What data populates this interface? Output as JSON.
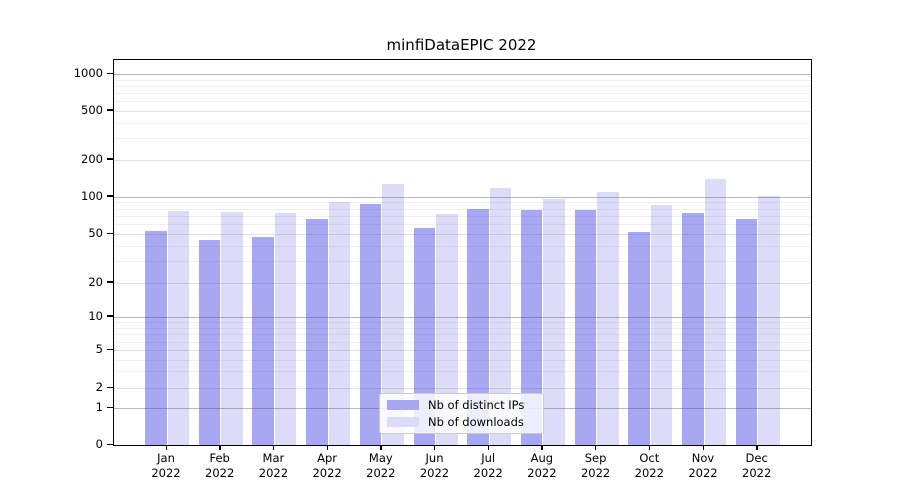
{
  "figure": {
    "title": "minfiDataEPIC 2022"
  },
  "chart_data": {
    "type": "bar",
    "title": "minfiDataEPIC 2022",
    "categories": [
      "Jan 2022",
      "Feb 2022",
      "Mar 2022",
      "Apr 2022",
      "May 2022",
      "Jun 2022",
      "Jul 2022",
      "Aug 2022",
      "Sep 2022",
      "Oct 2022",
      "Nov 2022",
      "Dec 2022"
    ],
    "x_tick_labels": [
      [
        "Jan",
        "2022"
      ],
      [
        "Feb",
        "2022"
      ],
      [
        "Mar",
        "2022"
      ],
      [
        "Apr",
        "2022"
      ],
      [
        "May",
        "2022"
      ],
      [
        "Jun",
        "2022"
      ],
      [
        "Jul",
        "2022"
      ],
      [
        "Aug",
        "2022"
      ],
      [
        "Sep",
        "2022"
      ],
      [
        "Oct",
        "2022"
      ],
      [
        "Nov",
        "2022"
      ],
      [
        "Dec",
        "2022"
      ]
    ],
    "series": [
      {
        "name": "Nb of distinct IPs",
        "color": "#a7a7f4",
        "values": [
          53,
          45,
          47,
          66,
          87,
          56,
          80,
          78,
          78,
          52,
          74,
          66
        ]
      },
      {
        "name": "Nb of downloads",
        "color": "#dcdcf8",
        "values": [
          77,
          75,
          74,
          90,
          128,
          73,
          118,
          96,
          110,
          86,
          140,
          101
        ]
      }
    ],
    "xlabel": "",
    "ylabel": "",
    "yticks": [
      0,
      1,
      2,
      5,
      10,
      20,
      50,
      100,
      200,
      500,
      1000
    ],
    "yscale": "log-like with 0 baseline and 1-2-5 ticks",
    "ylim": [
      0,
      1300
    ],
    "grid": true,
    "legend_position": "lower center"
  }
}
